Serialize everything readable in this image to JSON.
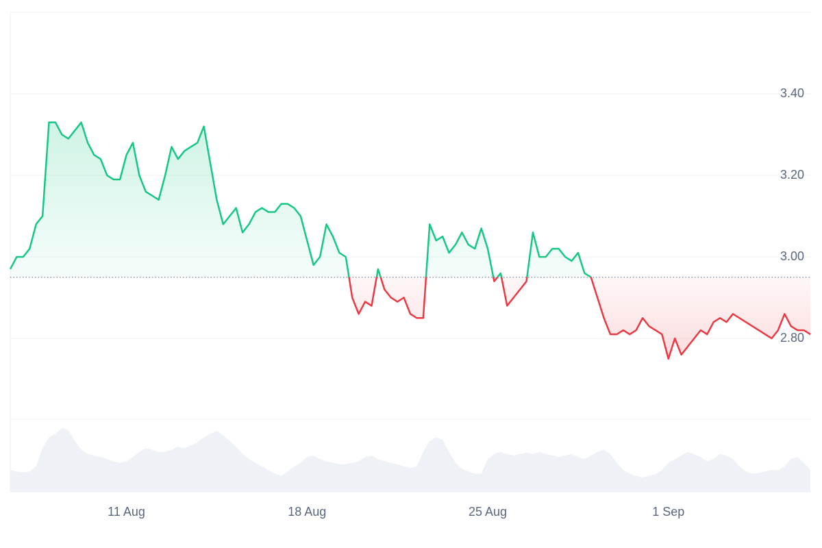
{
  "chart_data": {
    "type": "line",
    "categories": [
      null,
      null,
      null,
      null,
      null,
      null,
      null,
      null,
      null,
      null,
      null,
      null,
      null,
      null,
      null,
      null,
      null,
      null,
      "11 Aug",
      null,
      null,
      null,
      null,
      null,
      null,
      null,
      null,
      null,
      null,
      null,
      null,
      null,
      null,
      null,
      null,
      null,
      null,
      null,
      null,
      null,
      null,
      null,
      null,
      null,
      null,
      null,
      "18 Aug",
      null,
      null,
      null,
      null,
      null,
      null,
      null,
      null,
      null,
      null,
      null,
      null,
      null,
      null,
      null,
      null,
      null,
      null,
      null,
      null,
      null,
      null,
      null,
      null,
      null,
      null,
      null,
      "25 Aug",
      null,
      null,
      null,
      null,
      null,
      null,
      null,
      null,
      null,
      null,
      null,
      null,
      null,
      null,
      null,
      null,
      null,
      null,
      null,
      null,
      null,
      null,
      null,
      null,
      null,
      null,
      null,
      "1 Sep",
      null,
      null,
      null,
      null,
      null,
      null,
      null,
      null,
      null,
      null,
      null,
      null,
      null,
      null,
      null,
      null,
      null,
      null,
      null,
      null,
      null,
      null
    ],
    "values": [
      2.97,
      3.0,
      3.0,
      3.02,
      3.08,
      3.1,
      3.33,
      3.33,
      3.3,
      3.29,
      3.31,
      3.33,
      3.28,
      3.25,
      3.24,
      3.2,
      3.19,
      3.19,
      3.25,
      3.28,
      3.2,
      3.16,
      3.15,
      3.14,
      3.2,
      3.27,
      3.24,
      3.26,
      3.27,
      3.28,
      3.32,
      3.23,
      3.14,
      3.08,
      3.1,
      3.12,
      3.06,
      3.08,
      3.11,
      3.12,
      3.11,
      3.11,
      3.13,
      3.13,
      3.12,
      3.1,
      3.04,
      2.98,
      3.0,
      3.08,
      3.05,
      3.01,
      3.0,
      2.9,
      2.86,
      2.89,
      2.88,
      2.97,
      2.92,
      2.9,
      2.89,
      2.9,
      2.86,
      2.85,
      2.85,
      3.08,
      3.04,
      3.05,
      3.01,
      3.03,
      3.06,
      3.03,
      3.02,
      3.07,
      3.02,
      2.94,
      2.96,
      2.88,
      2.9,
      2.92,
      2.94,
      3.06,
      3.0,
      3.0,
      3.02,
      3.02,
      3.0,
      2.99,
      3.01,
      2.96,
      2.95,
      2.9,
      2.85,
      2.81,
      2.81,
      2.82,
      2.81,
      2.82,
      2.85,
      2.83,
      2.82,
      2.81,
      2.75,
      2.8,
      2.76,
      2.78,
      2.8,
      2.82,
      2.81,
      2.84,
      2.85,
      2.84,
      2.86,
      2.85,
      2.84,
      2.83,
      2.82,
      2.81,
      2.8,
      2.82,
      2.86,
      2.83,
      2.82,
      2.82,
      2.81
    ],
    "volume": [
      30,
      28,
      27,
      28,
      35,
      60,
      75,
      80,
      88,
      85,
      70,
      58,
      52,
      50,
      48,
      45,
      42,
      40,
      42,
      48,
      55,
      60,
      58,
      55,
      55,
      58,
      62,
      60,
      64,
      68,
      75,
      80,
      84,
      78,
      70,
      62,
      52,
      45,
      40,
      35,
      30,
      25,
      22,
      28,
      35,
      40,
      48,
      50,
      45,
      42,
      40,
      38,
      38,
      40,
      42,
      48,
      50,
      45,
      42,
      40,
      38,
      35,
      33,
      35,
      55,
      70,
      75,
      72,
      55,
      40,
      32,
      28,
      25,
      25,
      45,
      52,
      55,
      52,
      50,
      52,
      54,
      52,
      55,
      52,
      50,
      48,
      50,
      52,
      48,
      45,
      50,
      55,
      58,
      52,
      40,
      30,
      25,
      22,
      20,
      22,
      24,
      30,
      40,
      45,
      50,
      55,
      52,
      48,
      42,
      45,
      52,
      50,
      45,
      35,
      28,
      25,
      26,
      28,
      30,
      30,
      35,
      45,
      48,
      40,
      30
    ],
    "baseline": 2.95,
    "up_color": "#16c784",
    "down_color": "#ea3943",
    "volume_color": "#eef1f5",
    "ylim": [
      2.6,
      3.6
    ],
    "yticks": [
      {
        "value": 2.8,
        "label": "2.80"
      },
      {
        "value": 3.0,
        "label": "3.00"
      },
      {
        "value": 3.2,
        "label": "3.20"
      },
      {
        "value": 3.4,
        "label": "3.40"
      }
    ],
    "vlim": [
      0,
      100
    ],
    "grid": true
  }
}
